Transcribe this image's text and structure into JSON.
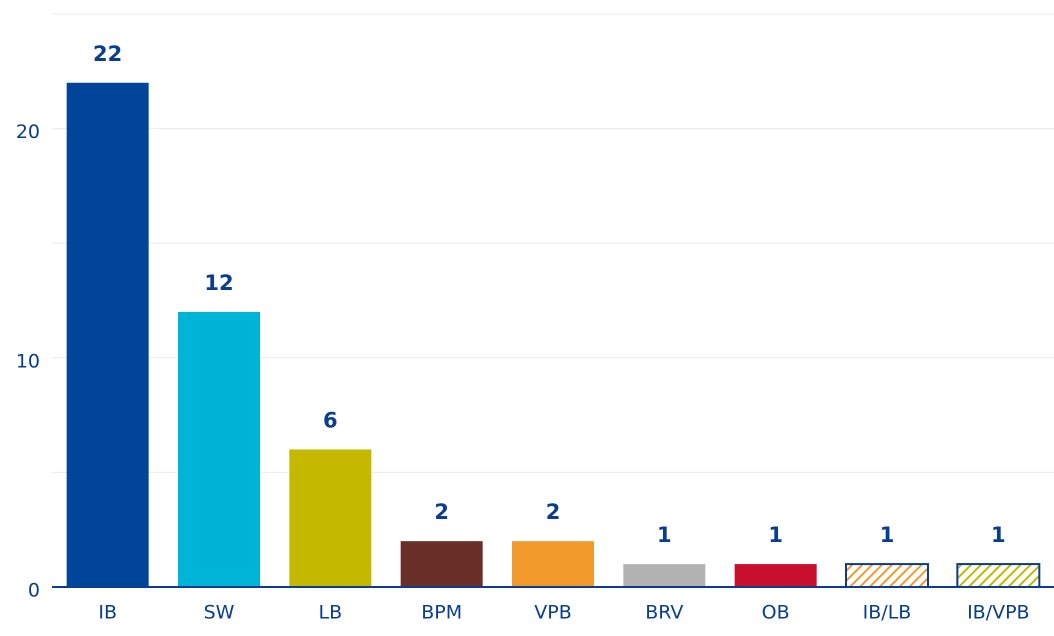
{
  "chart_data": {
    "type": "bar",
    "categories": [
      "IB",
      "SW",
      "LB",
      "BPM",
      "VPB",
      "BRV",
      "OB",
      "IB/LB",
      "IB/VPB"
    ],
    "values": [
      22,
      12,
      6,
      2,
      2,
      1,
      1,
      1,
      1
    ],
    "colors": [
      "#00459a",
      "#00b4d8",
      "#c4b800",
      "#6b2f2a",
      "#f39a2c",
      "#b2b2b2",
      "#c8102e",
      "#f39a2c",
      "#c4b800"
    ],
    "hatched": [
      false,
      false,
      false,
      false,
      false,
      false,
      false,
      true,
      true
    ],
    "ylim": [
      0,
      25
    ],
    "yticks": [
      0,
      10,
      20
    ],
    "minor_yticks": [
      5,
      15,
      25
    ],
    "grid": true
  }
}
